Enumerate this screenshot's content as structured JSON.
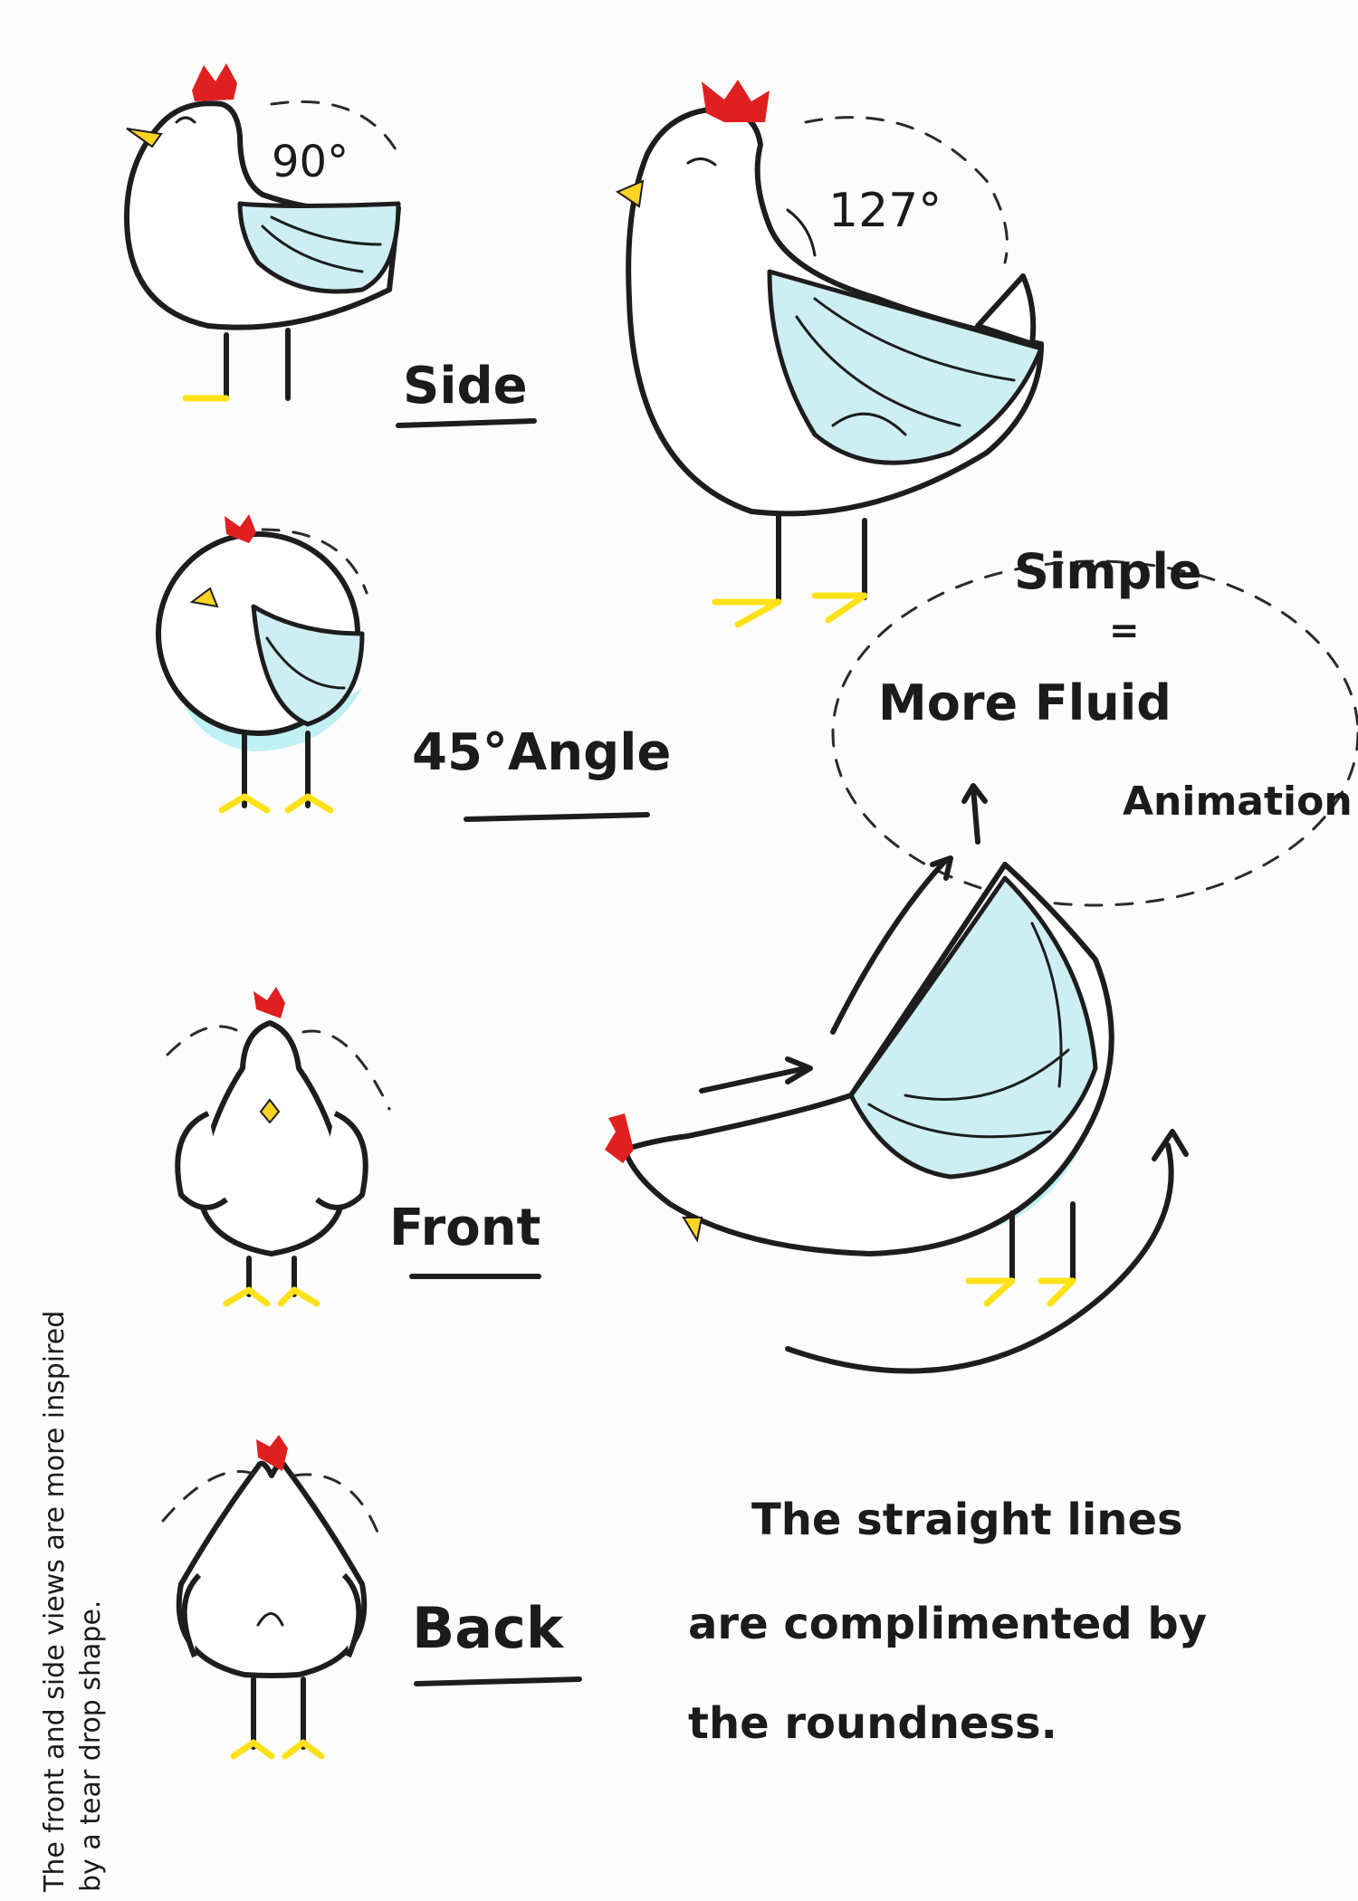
{
  "labels": {
    "side": "Side",
    "angle": "45°Angle",
    "front": "Front",
    "back": "Back"
  },
  "angles": {
    "small": "90°",
    "large": "127°"
  },
  "bubble": {
    "line1": "Simple",
    "line2": "=",
    "line3": "More Fluid",
    "line4": "Animation"
  },
  "notes": {
    "bottom_right": {
      "line1": "The straight lines",
      "line2": "are complimented by",
      "line3": "the roundness."
    },
    "margin": {
      "line1": "The front and side views are more inspired",
      "line2": "by a tear drop shape."
    }
  },
  "colors": {
    "ink": "#1d1d1d",
    "body_fill": "#ffffff",
    "feather_cyan": "#bff0f4",
    "comb_red": "#e02020",
    "beak_yellow": "#ffd324",
    "feet_yellow": "#ffe11a"
  }
}
